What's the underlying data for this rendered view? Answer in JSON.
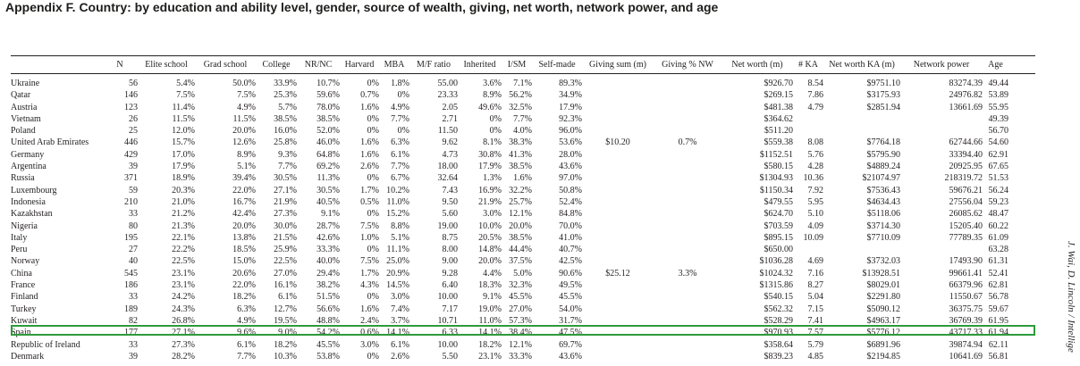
{
  "title": "Appendix F. Country: by education and ability level, gender, source of wealth, giving, net worth, network power, and age",
  "side_caption": "J. Wai, D. Lincoln / Intellige",
  "columns": [
    "",
    "N",
    "Elite school",
    "Grad school",
    "College",
    "NR/NC",
    "Harvard",
    "MBA",
    "M/F ratio",
    "Inherited",
    "I/SM",
    "Self-made",
    "Giving sum (m)",
    "Giving % NW",
    "Net worth (m)",
    "# KA",
    "Net worth KA (m)",
    "Network power",
    "Age"
  ],
  "highlighted_country": "Spain",
  "highlight_color": "#2e9a3c",
  "rows": [
    [
      "Ukraine",
      "56",
      "5.4%",
      "50.0%",
      "33.9%",
      "10.7%",
      "0%",
      "1.8%",
      "55.00",
      "3.6%",
      "7.1%",
      "89.3%",
      "",
      "",
      "$926.70",
      "8.54",
      "$9751.10",
      "83274.39",
      "49.44"
    ],
    [
      "Qatar",
      "146",
      "7.5%",
      "7.5%",
      "25.3%",
      "59.6%",
      "0.7%",
      "0%",
      "23.33",
      "8.9%",
      "56.2%",
      "34.9%",
      "",
      "",
      "$269.15",
      "7.86",
      "$3175.93",
      "24976.82",
      "53.89"
    ],
    [
      "Austria",
      "123",
      "11.4%",
      "4.9%",
      "5.7%",
      "78.0%",
      "1.6%",
      "4.9%",
      "2.05",
      "49.6%",
      "32.5%",
      "17.9%",
      "",
      "",
      "$481.38",
      "4.79",
      "$2851.94",
      "13661.69",
      "55.95"
    ],
    [
      "Vietnam",
      "26",
      "11.5%",
      "11.5%",
      "38.5%",
      "38.5%",
      "0%",
      "7.7%",
      "2.71",
      "0%",
      "7.7%",
      "92.3%",
      "",
      "",
      "$364.62",
      "",
      "",
      "",
      "49.39"
    ],
    [
      "Poland",
      "25",
      "12.0%",
      "20.0%",
      "16.0%",
      "52.0%",
      "0%",
      "0%",
      "11.50",
      "0%",
      "4.0%",
      "96.0%",
      "",
      "",
      "$511.20",
      "",
      "",
      "",
      "56.70"
    ],
    [
      "United Arab Emirates",
      "446",
      "15.7%",
      "12.6%",
      "25.8%",
      "46.0%",
      "1.6%",
      "6.3%",
      "9.62",
      "8.1%",
      "38.3%",
      "53.6%",
      "$10.20",
      "0.7%",
      "$559.38",
      "8.08",
      "$7764.18",
      "62744.66",
      "54.60"
    ],
    [
      "Germany",
      "429",
      "17.0%",
      "8.9%",
      "9.3%",
      "64.8%",
      "1.6%",
      "6.1%",
      "4.73",
      "30.8%",
      "41.3%",
      "28.0%",
      "",
      "",
      "$1152.51",
      "5.76",
      "$5795.90",
      "33394.40",
      "62.91"
    ],
    [
      "Argentina",
      "39",
      "17.9%",
      "5.1%",
      "7.7%",
      "69.2%",
      "2.6%",
      "7.7%",
      "18.00",
      "17.9%",
      "38.5%",
      "43.6%",
      "",
      "",
      "$580.15",
      "4.28",
      "$4889.24",
      "20925.95",
      "67.65"
    ],
    [
      "Russia",
      "371",
      "18.9%",
      "39.4%",
      "30.5%",
      "11.3%",
      "0%",
      "6.7%",
      "32.64",
      "1.3%",
      "1.6%",
      "97.0%",
      "",
      "",
      "$1304.93",
      "10.36",
      "$21074.97",
      "218319.72",
      "51.53"
    ],
    [
      "Luxembourg",
      "59",
      "20.3%",
      "22.0%",
      "27.1%",
      "30.5%",
      "1.7%",
      "10.2%",
      "7.43",
      "16.9%",
      "32.2%",
      "50.8%",
      "",
      "",
      "$1150.34",
      "7.92",
      "$7536.43",
      "59676.21",
      "56.24"
    ],
    [
      "Indonesia",
      "210",
      "21.0%",
      "16.7%",
      "21.9%",
      "40.5%",
      "0.5%",
      "11.0%",
      "9.50",
      "21.9%",
      "25.7%",
      "52.4%",
      "",
      "",
      "$479.55",
      "5.95",
      "$4634.43",
      "27556.04",
      "59.23"
    ],
    [
      "Kazakhstan",
      "33",
      "21.2%",
      "42.4%",
      "27.3%",
      "9.1%",
      "0%",
      "15.2%",
      "5.60",
      "3.0%",
      "12.1%",
      "84.8%",
      "",
      "",
      "$624.70",
      "5.10",
      "$5118.06",
      "26085.62",
      "48.47"
    ],
    [
      "Nigeria",
      "80",
      "21.3%",
      "20.0%",
      "30.0%",
      "28.7%",
      "7.5%",
      "8.8%",
      "19.00",
      "10.0%",
      "20.0%",
      "70.0%",
      "",
      "",
      "$703.59",
      "4.09",
      "$3714.30",
      "15205.40",
      "60.22"
    ],
    [
      "Italy",
      "195",
      "22.1%",
      "13.8%",
      "21.5%",
      "42.6%",
      "1.0%",
      "5.1%",
      "8.75",
      "20.5%",
      "38.5%",
      "41.0%",
      "",
      "",
      "$895.15",
      "10.09",
      "$7710.09",
      "77789.35",
      "61.09"
    ],
    [
      "Peru",
      "27",
      "22.2%",
      "18.5%",
      "25.9%",
      "33.3%",
      "0%",
      "11.1%",
      "8.00",
      "14.8%",
      "44.4%",
      "40.7%",
      "",
      "",
      "$650.00",
      "",
      "",
      "",
      "63.28"
    ],
    [
      "Norway",
      "40",
      "22.5%",
      "15.0%",
      "22.5%",
      "40.0%",
      "7.5%",
      "25.0%",
      "9.00",
      "20.0%",
      "37.5%",
      "42.5%",
      "",
      "",
      "$1036.28",
      "4.69",
      "$3732.03",
      "17493.90",
      "61.31"
    ],
    [
      "China",
      "545",
      "23.1%",
      "20.6%",
      "27.0%",
      "29.4%",
      "1.7%",
      "20.9%",
      "9.28",
      "4.4%",
      "5.0%",
      "90.6%",
      "$25.12",
      "3.3%",
      "$1024.32",
      "7.16",
      "$13928.51",
      "99661.41",
      "52.41"
    ],
    [
      "France",
      "186",
      "23.1%",
      "22.0%",
      "16.1%",
      "38.2%",
      "4.3%",
      "14.5%",
      "6.40",
      "18.3%",
      "32.3%",
      "49.5%",
      "",
      "",
      "$1315.86",
      "8.27",
      "$8029.01",
      "66379.96",
      "62.81"
    ],
    [
      "Finland",
      "33",
      "24.2%",
      "18.2%",
      "6.1%",
      "51.5%",
      "0%",
      "3.0%",
      "10.00",
      "9.1%",
      "45.5%",
      "45.5%",
      "",
      "",
      "$540.15",
      "5.04",
      "$2291.80",
      "11550.67",
      "56.78"
    ],
    [
      "Turkey",
      "189",
      "24.3%",
      "6.3%",
      "12.7%",
      "56.6%",
      "1.6%",
      "7.4%",
      "7.17",
      "19.0%",
      "27.0%",
      "54.0%",
      "",
      "",
      "$562.32",
      "7.15",
      "$5090.12",
      "36375.75",
      "59.67"
    ],
    [
      "Kuwait",
      "82",
      "26.8%",
      "4.9%",
      "19.5%",
      "48.8%",
      "2.4%",
      "3.7%",
      "10.71",
      "11.0%",
      "57.3%",
      "31.7%",
      "",
      "",
      "$528.29",
      "7.41",
      "$4963.17",
      "36769.39",
      "61.95"
    ],
    [
      "Spain",
      "177",
      "27.1%",
      "9.6%",
      "9.0%",
      "54.2%",
      "0.6%",
      "14.1%",
      "6.33",
      "14.1%",
      "38.4%",
      "47.5%",
      "",
      "",
      "$970.93",
      "7.57",
      "$5776.12",
      "43717.33",
      "61.94"
    ],
    [
      "Republic of Ireland",
      "33",
      "27.3%",
      "6.1%",
      "18.2%",
      "45.5%",
      "3.0%",
      "6.1%",
      "10.00",
      "18.2%",
      "12.1%",
      "69.7%",
      "",
      "",
      "$358.64",
      "5.79",
      "$6891.96",
      "39874.94",
      "62.11"
    ],
    [
      "Denmark",
      "39",
      "28.2%",
      "7.7%",
      "10.3%",
      "53.8%",
      "0%",
      "2.6%",
      "5.50",
      "23.1%",
      "33.3%",
      "43.6%",
      "",
      "",
      "$839.23",
      "4.85",
      "$2194.85",
      "10641.69",
      "56.81"
    ]
  ]
}
